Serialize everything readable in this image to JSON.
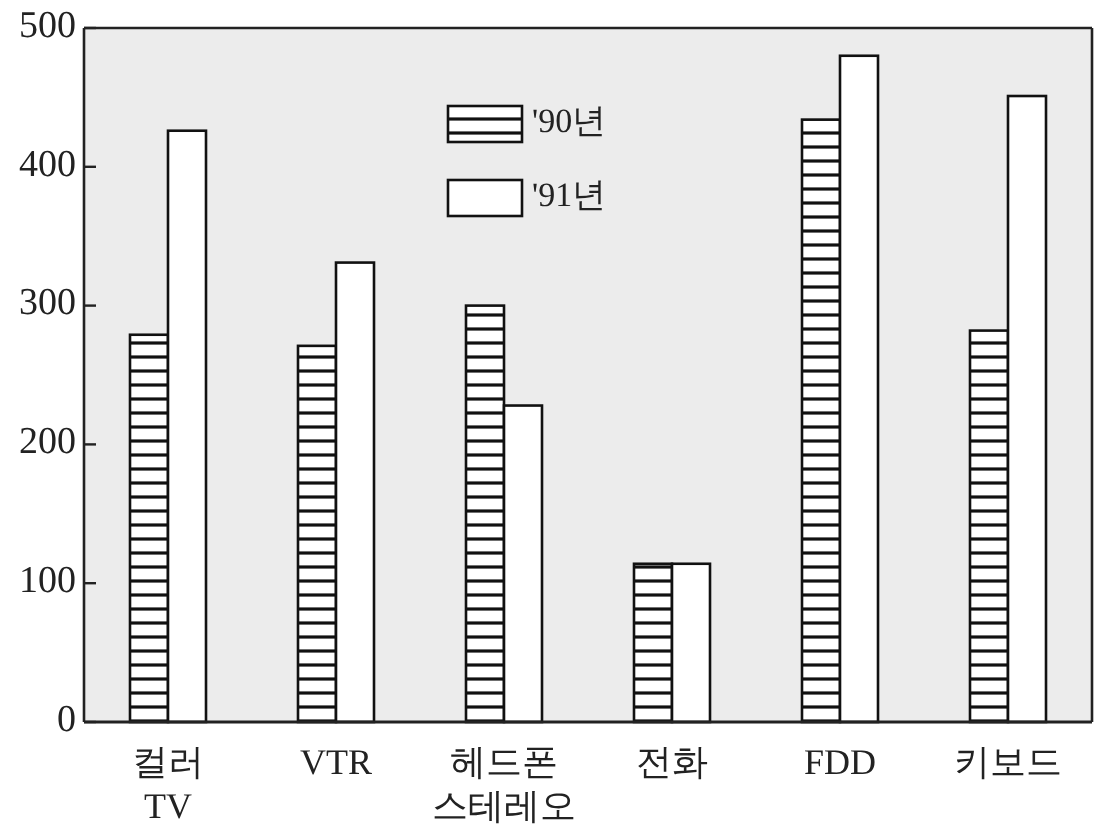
{
  "chart_data": {
    "type": "bar",
    "categories": [
      "컬러\nTV",
      "VTR",
      "헤드폰\n스테레오",
      "전화",
      "FDD",
      "키보드"
    ],
    "series": [
      {
        "name": "'90년",
        "color": "#111111",
        "values": [
          279,
          271,
          300,
          114,
          434,
          282
        ]
      },
      {
        "name": "'91년",
        "color": "#ffffff",
        "values": [
          426,
          331,
          228,
          114,
          480,
          451
        ]
      }
    ],
    "ylim": [
      0,
      500
    ],
    "yticks": [
      0,
      100,
      200,
      300,
      400,
      500
    ],
    "grid": false,
    "legend": "top"
  }
}
